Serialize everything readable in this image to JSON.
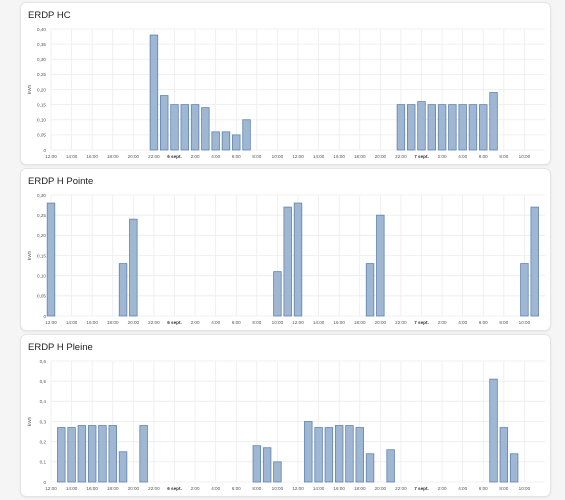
{
  "cards": [
    {
      "title": "ERDP HC"
    },
    {
      "title": "ERDP H Pointe"
    },
    {
      "title": "ERDP H Pleine"
    }
  ],
  "colors": {
    "bar_fill": "#9fb7d3",
    "bar_stroke": "#5f83ad",
    "grid": "#ececec",
    "text": "#555555"
  },
  "chart_data": [
    {
      "type": "bar",
      "title": "ERDP HC",
      "ylabel": "kWh",
      "ylim": [
        0,
        0.4
      ],
      "yticks": [
        "0",
        "0,05",
        "0,10",
        "0,15",
        "0,20",
        "0,25",
        "0,30",
        "0,35",
        "0,40"
      ],
      "xticks": [
        "12:00",
        "14:00",
        "16:00",
        "18:00",
        "20:00",
        "22:00",
        "6 sept.",
        "2:00",
        "4:00",
        "6:00",
        "8:00",
        "10:00",
        "12:00",
        "14:00",
        "16:00",
        "18:00",
        "20:00",
        "22:00",
        "7 sept.",
        "2:00",
        "4:00",
        "6:00",
        "8:00",
        "10:00"
      ],
      "bold_ticks": [
        "6 sept.",
        "7 sept."
      ],
      "x_hours": [
        22,
        23,
        24,
        25,
        26,
        27,
        28,
        29,
        30,
        31,
        46,
        47,
        48,
        49,
        50,
        51,
        52,
        53,
        54,
        55
      ],
      "values": [
        0.38,
        0.18,
        0.15,
        0.15,
        0.15,
        0.14,
        0.06,
        0.06,
        0.05,
        0.1,
        0.15,
        0.15,
        0.16,
        0.15,
        0.15,
        0.15,
        0.15,
        0.15,
        0.15,
        0.19
      ]
    },
    {
      "type": "bar",
      "title": "ERDP H Pointe",
      "ylabel": "kWh",
      "ylim": [
        0,
        0.3
      ],
      "yticks": [
        "0",
        "0,05",
        "0,10",
        "0,15",
        "0,20",
        "0,25",
        "0,30"
      ],
      "xticks": [
        "12:00",
        "14:00",
        "16:00",
        "18:00",
        "20:00",
        "22:00",
        "6 sept.",
        "2:00",
        "4:00",
        "6:00",
        "8:00",
        "10:00",
        "12:00",
        "14:00",
        "16:00",
        "18:00",
        "20:00",
        "22:00",
        "7 sept.",
        "2:00",
        "4:00",
        "6:00",
        "8:00",
        "10:00"
      ],
      "bold_ticks": [
        "6 sept.",
        "7 sept."
      ],
      "x_hours": [
        12,
        19,
        20,
        34,
        35,
        36,
        43,
        44,
        58,
        59
      ],
      "values": [
        0.28,
        0.13,
        0.24,
        0.11,
        0.27,
        0.28,
        0.13,
        0.25,
        0.13,
        0.27
      ]
    },
    {
      "type": "bar",
      "title": "ERDP H Pleine",
      "ylabel": "kWh",
      "ylim": [
        0,
        0.6
      ],
      "yticks": [
        "0",
        "0,1",
        "0,2",
        "0,3",
        "0,4",
        "0,5",
        "0,6"
      ],
      "xticks": [
        "12:00",
        "14:00",
        "16:00",
        "18:00",
        "20:00",
        "22:00",
        "6 sept.",
        "2:00",
        "4:00",
        "6:00",
        "8:00",
        "10:00",
        "12:00",
        "14:00",
        "16:00",
        "18:00",
        "20:00",
        "22:00",
        "7 sept.",
        "2:00",
        "4:00",
        "6:00",
        "8:00",
        "10:00"
      ],
      "bold_ticks": [
        "6 sept.",
        "7 sept."
      ],
      "x_hours": [
        13,
        14,
        15,
        16,
        17,
        18,
        19,
        21,
        32,
        33,
        34,
        37,
        38,
        39,
        40,
        41,
        42,
        43,
        45,
        55,
        56,
        57
      ],
      "values": [
        0.27,
        0.27,
        0.28,
        0.28,
        0.28,
        0.28,
        0.15,
        0.28,
        0.18,
        0.17,
        0.1,
        0.3,
        0.27,
        0.27,
        0.28,
        0.28,
        0.27,
        0.14,
        0.16,
        0.51,
        0.27,
        0.14
      ]
    }
  ]
}
